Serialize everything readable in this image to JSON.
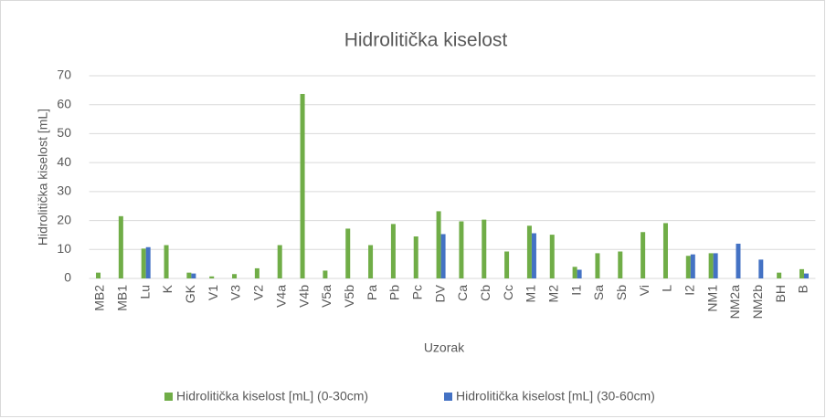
{
  "chart_data": {
    "type": "bar",
    "title": "Hidrolitička kiselost",
    "x_label": "Uzorak",
    "y_label": "Hidrolitička kiselost [mL]",
    "categories": [
      "MB2",
      "MB1",
      "Lu",
      "K",
      "GK",
      "V1",
      "V3",
      "V2",
      "V4a",
      "V4b",
      "V5a",
      "V5b",
      "Pa",
      "Pb",
      "Pc",
      "DV",
      "Ca",
      "Cb",
      "Cc",
      "M1",
      "M2",
      "I1",
      "Sa",
      "Sb",
      "Vi",
      "L",
      "I2",
      "NM1",
      "NM2a",
      "NM2b",
      "BH",
      "B"
    ],
    "series": [
      {
        "name": "Hidrolitička kiselost [mL] (0-30cm)",
        "color": "#70ad47",
        "values": [
          2,
          21.5,
          10.3,
          11.5,
          2,
          0.7,
          1.5,
          3.5,
          11.5,
          63.7,
          2.7,
          17.2,
          11.5,
          18.8,
          14.5,
          23.2,
          19.7,
          20.3,
          9.3,
          18.2,
          15.1,
          4,
          8.7,
          9.3,
          16,
          19.1,
          7.8,
          8.7,
          null,
          null,
          2,
          3.2
        ]
      },
      {
        "name": "Hidrolitička kiselost [mL] (30-60cm)",
        "color": "#4472c4",
        "values": [
          null,
          null,
          10.8,
          null,
          1.7,
          null,
          null,
          null,
          null,
          null,
          null,
          null,
          null,
          null,
          null,
          15.3,
          null,
          null,
          null,
          15.6,
          null,
          3,
          null,
          null,
          null,
          null,
          8.3,
          8.7,
          12,
          6.5,
          null,
          1.7
        ]
      }
    ],
    "ylim": [
      0,
      70
    ],
    "yticks": [
      0,
      10,
      20,
      30,
      40,
      50,
      60,
      70
    ],
    "grid": true,
    "legend": "bottom"
  }
}
